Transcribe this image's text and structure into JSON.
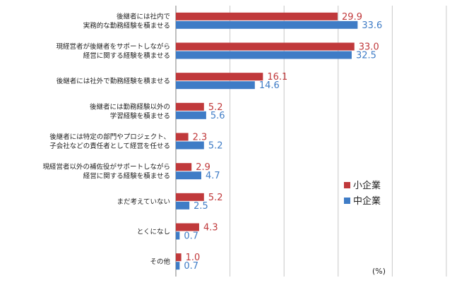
{
  "colors": {
    "series_small": "#C0393B",
    "series_medium": "#3F7CC6",
    "grid": "#C8C8C8",
    "axis": "#7F7F7F"
  },
  "chart_data": {
    "type": "bar",
    "orientation": "horizontal",
    "title": "",
    "unit_label": "(%)",
    "xlabel": "",
    "ylabel": "",
    "xlim": [
      0,
      50
    ],
    "grid": true,
    "legend_position": "right",
    "categories": [
      [
        "後継者には社内で",
        "実務的な勤務経験を積ませる"
      ],
      [
        "現経営者が後継者をサポートしながら",
        "経営に関する経験を積ませる"
      ],
      [
        "後継者には社外で勤務経験を積ませる"
      ],
      [
        "後継者には勤務経験以外の",
        "学習経験を積ませる"
      ],
      [
        "後継者には特定の部門やプロジェクト、",
        "子会社などの責任者として経営を任せる"
      ],
      [
        "現経営者以外の補佐役がサポートしながら",
        "経営に関する経験を積ませる"
      ],
      [
        "まだ考えていない"
      ],
      [
        "とくになし"
      ],
      [
        "その他"
      ]
    ],
    "series": [
      {
        "name": "小企業",
        "values": [
          29.9,
          33.0,
          16.1,
          5.2,
          2.3,
          2.9,
          5.2,
          4.3,
          1.0
        ],
        "labels": [
          "29.9",
          "33.0",
          "16.1",
          "5.2",
          "2.3",
          "2.9",
          "5.2",
          "4.3",
          "1.0"
        ]
      },
      {
        "name": "中企業",
        "values": [
          33.6,
          32.5,
          14.6,
          5.6,
          5.2,
          4.7,
          2.5,
          0.7,
          0.7
        ],
        "labels": [
          "33.6",
          "32.5",
          "14.6",
          "5.6",
          "5.2",
          "4.7",
          "2.5",
          "0.7",
          "0.7"
        ]
      }
    ]
  }
}
